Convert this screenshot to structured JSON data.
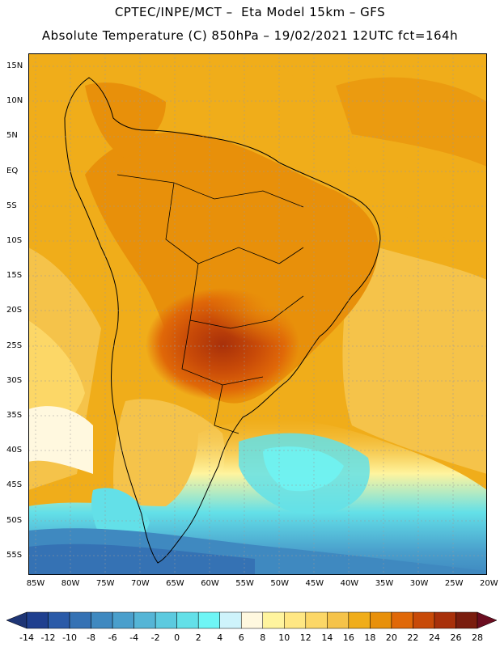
{
  "header": {
    "line1": "CPTEC/INPE/MCT –  Eta Model 15km – GFS",
    "line2": "Absolute Temperature (C) 850hPa – 19/02/2021 12UTC fct=164h"
  },
  "axes": {
    "lat_labels": [
      "15N",
      "10N",
      "5N",
      "EQ",
      "5S",
      "10S",
      "15S",
      "20S",
      "25S",
      "30S",
      "35S",
      "40S",
      "45S",
      "50S",
      "55S"
    ],
    "lon_labels": [
      "85W",
      "80W",
      "75W",
      "70W",
      "65W",
      "60W",
      "55W",
      "50W",
      "45W",
      "40W",
      "35W",
      "30W",
      "25W",
      "20W"
    ],
    "lat_range": [
      17,
      -58
    ],
    "lon_range": [
      -86,
      -20
    ]
  },
  "colorbar": {
    "labels": [
      "-14",
      "-12",
      "-10",
      "-8",
      "-6",
      "-4",
      "-2",
      "0",
      "2",
      "4",
      "6",
      "8",
      "10",
      "12",
      "14",
      "16",
      "18",
      "20",
      "22",
      "24",
      "26",
      "28"
    ],
    "colors": [
      "#1f3f8f",
      "#2a5aa8",
      "#3572b4",
      "#3f89c0",
      "#4a9fcc",
      "#55b5d6",
      "#5ccadf",
      "#63e0e8",
      "#6ef5f5",
      "#cef3fb",
      "#fff8df",
      "#fff49e",
      "#ffe783",
      "#fcd767",
      "#f5c34a",
      "#f0ad1a",
      "#e8900a",
      "#e06808",
      "#c84a08",
      "#a8300a",
      "#7a1d0e"
    ],
    "under_color": "#1e3575",
    "over_color": "#6b0d20"
  }
}
